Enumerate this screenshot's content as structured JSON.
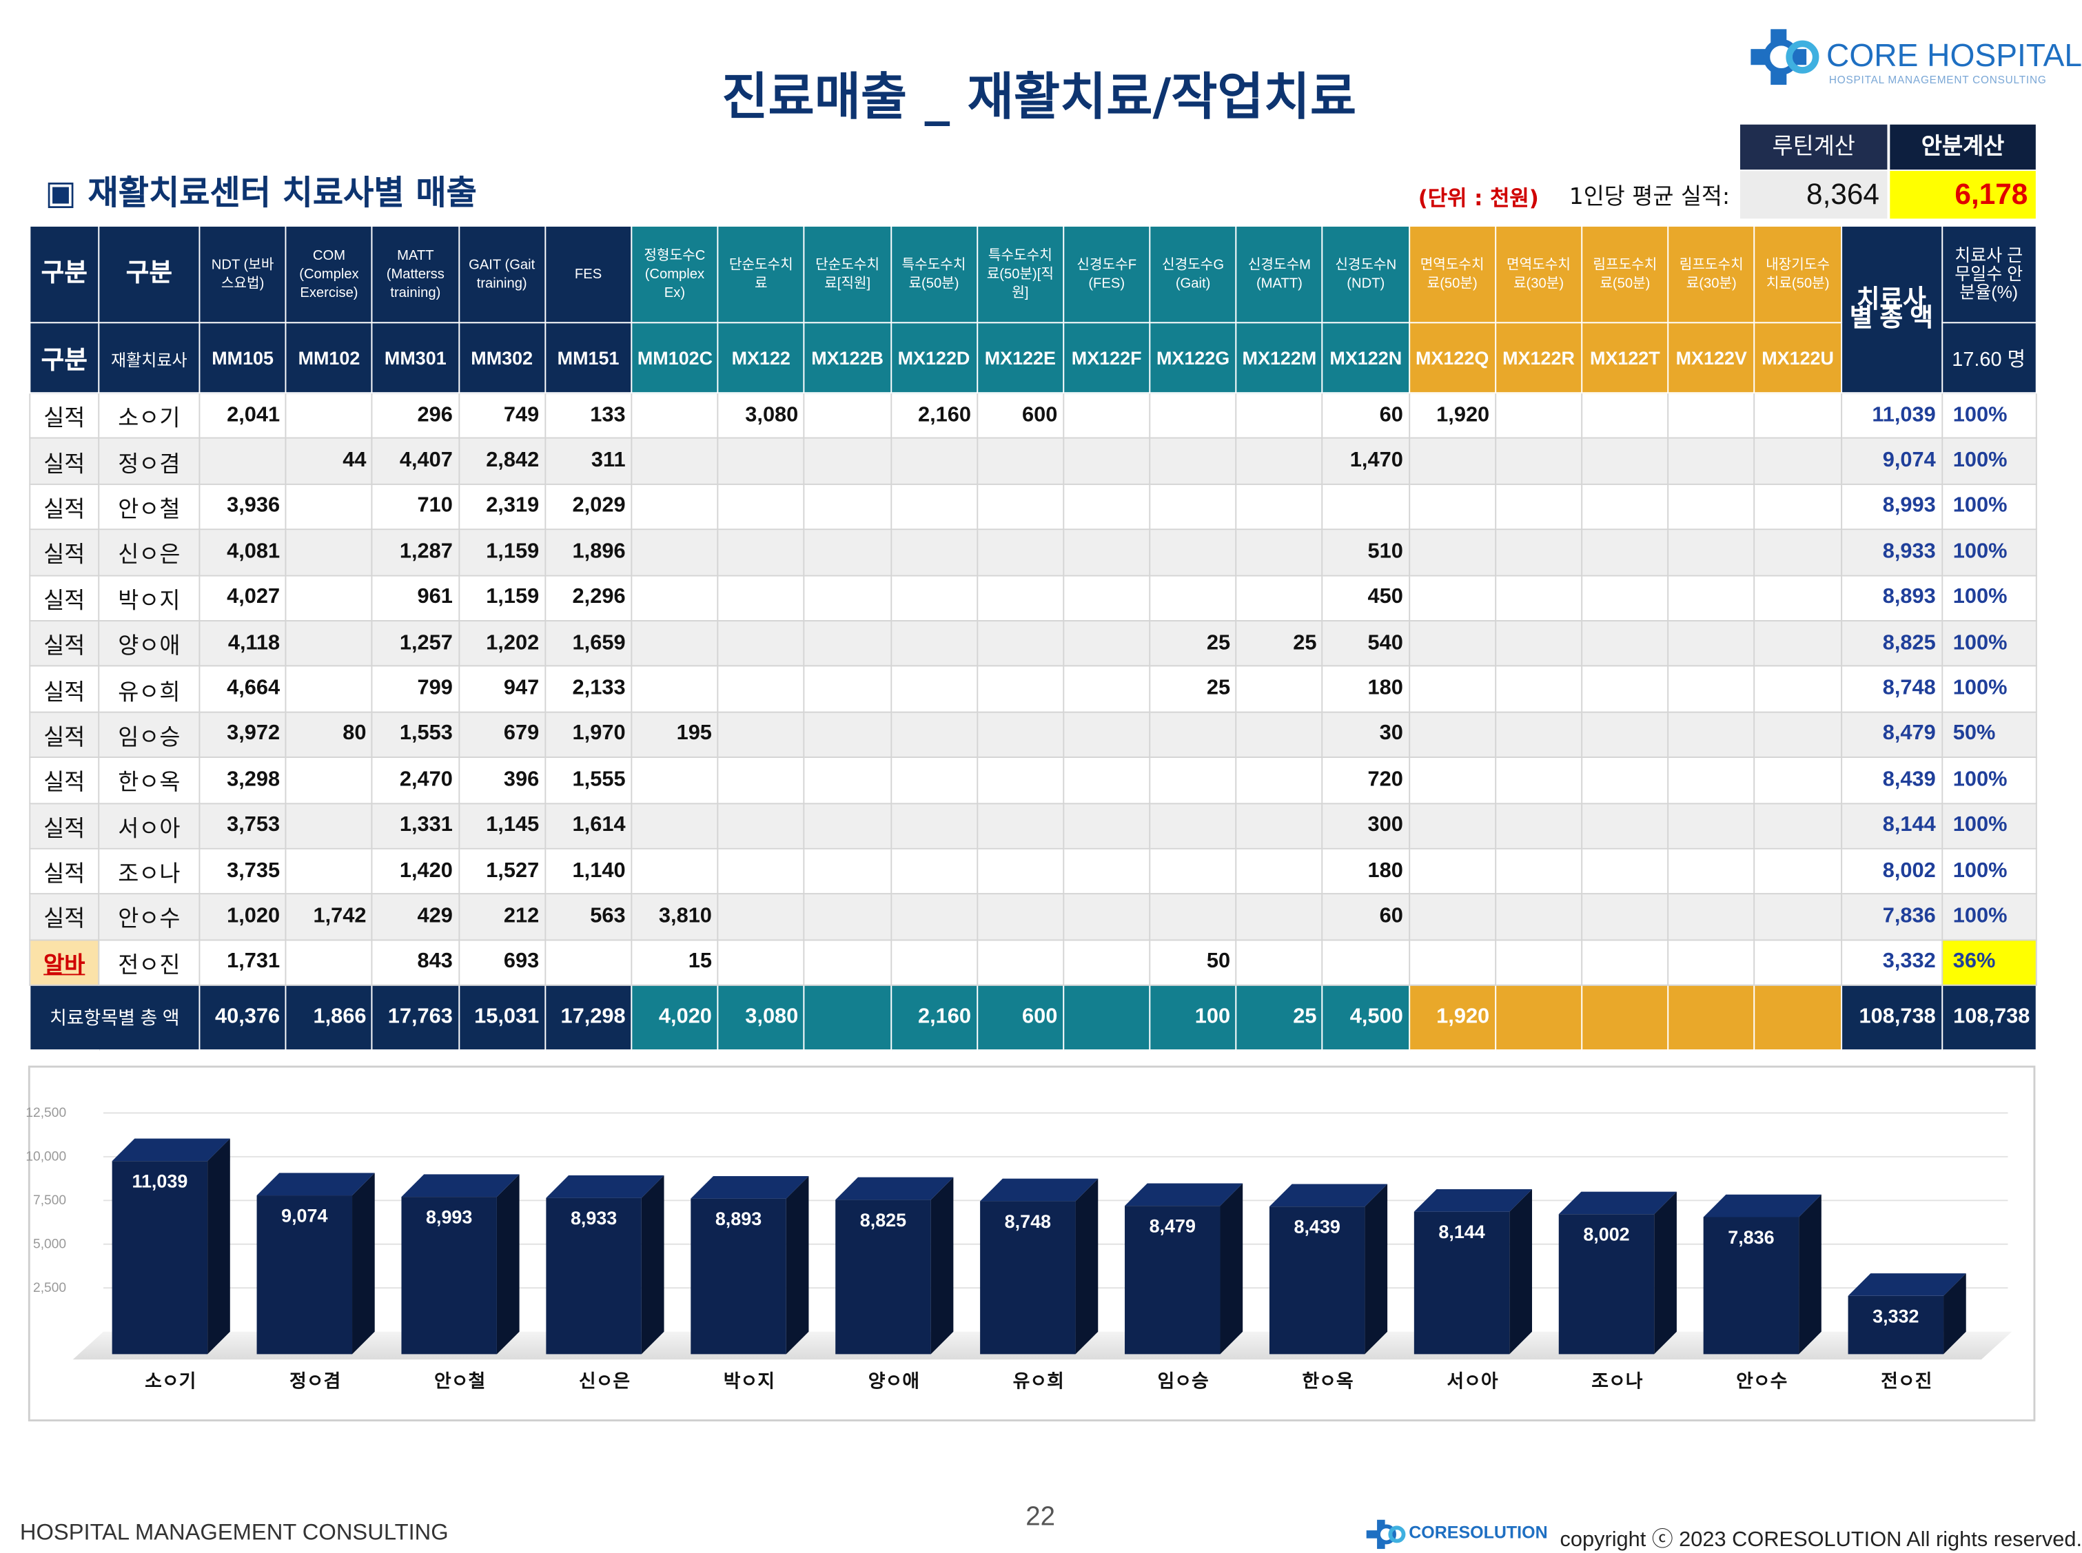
{
  "header": {
    "title": "진료매출 _ 재활치료/작업치료",
    "logo_name": "CORE HOSPITAL",
    "logo_sub": "HOSPITAL MANAGEMENT CONSULTING",
    "section_title": "▣ 재활치료센터 치료사별 매출",
    "unit": "(단위 : 천원)",
    "avg_label": "1인당 평균 실적:",
    "routine_label": "루틴계산",
    "routine_value": "8,364",
    "prorated_label": "안분계산",
    "prorated_value": "6,178"
  },
  "table": {
    "header": [
      "구분",
      "구분",
      "NDT (보바스요법)",
      "COM (Complex Exercise)",
      "MATT (Matterss training)",
      "GAIT (Gait training)",
      "FES",
      "정형도수C (Complex Ex)",
      "단순도수치료",
      "단순도수치료[직원]",
      "특수도수치료(50분)",
      "특수도수치료(50분)[직원]",
      "신경도수F (FES)",
      "신경도수G (Gait)",
      "신경도수M (MATT)",
      "신경도수N (NDT)",
      "면역도수치료(50분)",
      "면역도수치료(30분)",
      "림프도수치료(50분)",
      "림프도수치료(30분)",
      "내장기도수치료(50분)",
      "치료사별 총 액",
      "치료사 근무일수 안분율(%)"
    ],
    "subheader": {
      "first": [
        "구분",
        "재활치료사"
      ],
      "codes": [
        "MM105",
        "MM102",
        "MM301",
        "MM302",
        "MM151",
        "MM102C",
        "MX122",
        "MX122B",
        "MX122D",
        "MX122E",
        "MX122F",
        "MX122G",
        "MX122M",
        "MX122N",
        "MX122Q",
        "MX122R",
        "MX122T",
        "MX122V",
        "MX122U"
      ],
      "headcount": "17.60 명"
    },
    "rows": [
      {
        "type": "실적",
        "name": "소ㅇ기",
        "cells": [
          "2,041",
          null,
          "296",
          "749",
          "133",
          null,
          "3,080",
          null,
          "2,160",
          "600",
          null,
          null,
          null,
          "60",
          "1,920",
          null,
          null,
          null,
          null
        ],
        "total": "11,039",
        "ratio": "100%"
      },
      {
        "type": "실적",
        "name": "정ㅇ겸",
        "cells": [
          null,
          "44",
          "4,407",
          "2,842",
          "311",
          null,
          null,
          null,
          null,
          null,
          null,
          null,
          null,
          "1,470",
          null,
          null,
          null,
          null,
          null
        ],
        "total": "9,074",
        "ratio": "100%"
      },
      {
        "type": "실적",
        "name": "안ㅇ철",
        "cells": [
          "3,936",
          null,
          "710",
          "2,319",
          "2,029",
          null,
          null,
          null,
          null,
          null,
          null,
          null,
          null,
          null,
          null,
          null,
          null,
          null,
          null
        ],
        "total": "8,993",
        "ratio": "100%"
      },
      {
        "type": "실적",
        "name": "신ㅇ은",
        "cells": [
          "4,081",
          null,
          "1,287",
          "1,159",
          "1,896",
          null,
          null,
          null,
          null,
          null,
          null,
          null,
          null,
          "510",
          null,
          null,
          null,
          null,
          null
        ],
        "total": "8,933",
        "ratio": "100%"
      },
      {
        "type": "실적",
        "name": "박ㅇ지",
        "cells": [
          "4,027",
          null,
          "961",
          "1,159",
          "2,296",
          null,
          null,
          null,
          null,
          null,
          null,
          null,
          null,
          "450",
          null,
          null,
          null,
          null,
          null
        ],
        "total": "8,893",
        "ratio": "100%"
      },
      {
        "type": "실적",
        "name": "양ㅇ애",
        "cells": [
          "4,118",
          null,
          "1,257",
          "1,202",
          "1,659",
          null,
          null,
          null,
          null,
          null,
          null,
          "25",
          "25",
          "540",
          null,
          null,
          null,
          null,
          null
        ],
        "total": "8,825",
        "ratio": "100%"
      },
      {
        "type": "실적",
        "name": "유ㅇ희",
        "cells": [
          "4,664",
          null,
          "799",
          "947",
          "2,133",
          null,
          null,
          null,
          null,
          null,
          null,
          "25",
          null,
          "180",
          null,
          null,
          null,
          null,
          null
        ],
        "total": "8,748",
        "ratio": "100%"
      },
      {
        "type": "실적",
        "name": "임ㅇ승",
        "cells": [
          "3,972",
          "80",
          "1,553",
          "679",
          "1,970",
          "195",
          null,
          null,
          null,
          null,
          null,
          null,
          null,
          "30",
          null,
          null,
          null,
          null,
          null
        ],
        "total": "8,479",
        "ratio": "50%"
      },
      {
        "type": "실적",
        "name": "한ㅇ옥",
        "cells": [
          "3,298",
          null,
          "2,470",
          "396",
          "1,555",
          null,
          null,
          null,
          null,
          null,
          null,
          null,
          null,
          "720",
          null,
          null,
          null,
          null,
          null
        ],
        "total": "8,439",
        "ratio": "100%"
      },
      {
        "type": "실적",
        "name": "서ㅇ아",
        "cells": [
          "3,753",
          null,
          "1,331",
          "1,145",
          "1,614",
          null,
          null,
          null,
          null,
          null,
          null,
          null,
          null,
          "300",
          null,
          null,
          null,
          null,
          null
        ],
        "total": "8,144",
        "ratio": "100%"
      },
      {
        "type": "실적",
        "name": "조ㅇ나",
        "cells": [
          "3,735",
          null,
          "1,420",
          "1,527",
          "1,140",
          null,
          null,
          null,
          null,
          null,
          null,
          null,
          null,
          "180",
          null,
          null,
          null,
          null,
          null
        ],
        "total": "8,002",
        "ratio": "100%"
      },
      {
        "type": "실적",
        "name": "안ㅇ수",
        "cells": [
          "1,020",
          "1,742",
          "429",
          "212",
          "563",
          "3,810",
          null,
          null,
          null,
          null,
          null,
          null,
          null,
          "60",
          null,
          null,
          null,
          null,
          null
        ],
        "total": "7,836",
        "ratio": "100%"
      },
      {
        "type": "알바",
        "name": "전ㅇ진",
        "cells": [
          "1,731",
          null,
          "843",
          "693",
          null,
          "15",
          null,
          null,
          null,
          null,
          null,
          "50",
          null,
          null,
          null,
          null,
          null,
          null,
          null
        ],
        "total": "3,332",
        "ratio": "36%"
      }
    ],
    "totals": {
      "label": "치료항목별 총 액",
      "cells": [
        "40,376",
        "1,866",
        "17,763",
        "15,031",
        "17,298",
        "4,020",
        "3,080",
        null,
        "2,160",
        "600",
        null,
        "100",
        "25",
        "4,500",
        "1,920",
        null,
        null,
        null,
        null
      ],
      "total": "108,738",
      "ratio_total": "108,738"
    }
  },
  "chart_data": {
    "type": "bar",
    "categories": [
      "소ㅇ기",
      "정ㅇ겸",
      "안ㅇ철",
      "신ㅇ은",
      "박ㅇ지",
      "양ㅇ애",
      "유ㅇ희",
      "임ㅇ승",
      "한ㅇ옥",
      "서ㅇ아",
      "조ㅇ나",
      "안ㅇ수",
      "전ㅇ진"
    ],
    "values": [
      11039,
      9074,
      8993,
      8933,
      8893,
      8825,
      8748,
      8479,
      8439,
      8144,
      8002,
      7836,
      3332
    ],
    "value_labels": [
      "11,039",
      "9,074",
      "8,993",
      "8,933",
      "8,893",
      "8,825",
      "8,748",
      "8,479",
      "8,439",
      "8,144",
      "8,002",
      "7,836",
      "3,332"
    ],
    "color": "#0d2350",
    "ylim": [
      0,
      12500
    ],
    "yticks": [
      {
        "value": 2500,
        "label": "2,500"
      },
      {
        "value": 5000,
        "label": "5,000"
      },
      {
        "value": 7500,
        "label": "7,500"
      },
      {
        "value": 10000,
        "label": "10,000"
      },
      {
        "value": 12500,
        "label": "12,500"
      }
    ],
    "grid": true
  },
  "footer": {
    "left": "HOSPITAL MANAGEMENT CONSULTING",
    "page": "22",
    "brand": "CORESOLUTION",
    "copyright": "copyright ⓒ 2023 CORESOLUTION All rights reserved."
  }
}
